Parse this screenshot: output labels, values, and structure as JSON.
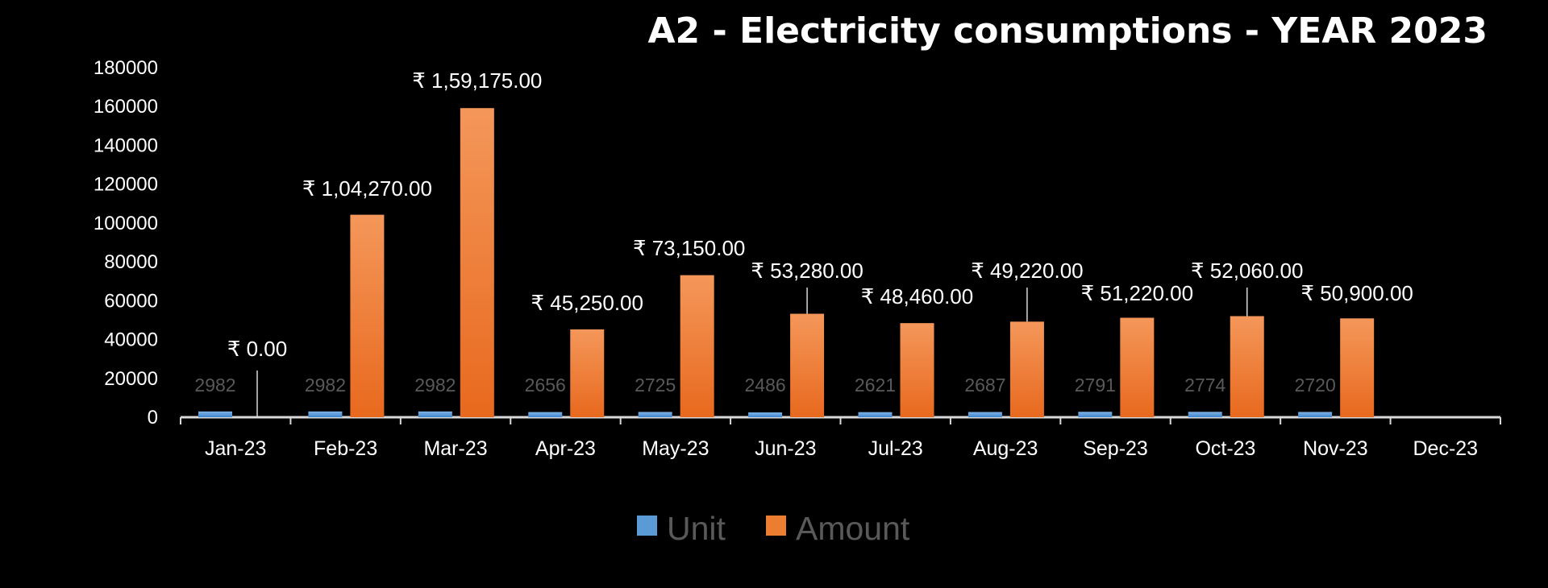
{
  "chart_data": {
    "type": "bar",
    "title": "A2 - Electricity consumptions - YEAR 2023",
    "categories": [
      "Jan-23",
      "Feb-23",
      "Mar-23",
      "Apr-23",
      "May-23",
      "Jun-23",
      "Jul-23",
      "Aug-23",
      "Sep-23",
      "Oct-23",
      "Nov-23",
      "Dec-23"
    ],
    "series": [
      {
        "name": "Unit",
        "color": "#5b9bd5",
        "values": [
          2982,
          2982,
          2982,
          2656,
          2725,
          2486,
          2621,
          2687,
          2791,
          2774,
          2720,
          null
        ],
        "labels": [
          "2982",
          "2982",
          "2982",
          "2656",
          "2725",
          "2486",
          "2621",
          "2687",
          "2791",
          "2774",
          "2720",
          ""
        ]
      },
      {
        "name": "Amount",
        "color": "#ed7d31",
        "values": [
          0,
          104270,
          159175,
          45250,
          73150,
          53280,
          48460,
          49220,
          51220,
          52060,
          50900,
          null
        ],
        "labels": [
          "₹ 0.00",
          "₹ 1,04,270.00",
          "₹ 1,59,175.00",
          "₹ 45,250.00",
          "₹ 73,150.00",
          "₹ 53,280.00",
          "₹ 48,460.00",
          "₹ 49,220.00",
          "₹ 51,220.00",
          "₹ 52,060.00",
          "₹ 50,900.00",
          ""
        ]
      }
    ],
    "yticks": [
      "0",
      "20000",
      "40000",
      "60000",
      "80000",
      "100000",
      "120000",
      "140000",
      "160000",
      "180000"
    ],
    "ylim": [
      0,
      180000
    ],
    "grid": false,
    "legend": "bottom",
    "background": "#000000"
  }
}
